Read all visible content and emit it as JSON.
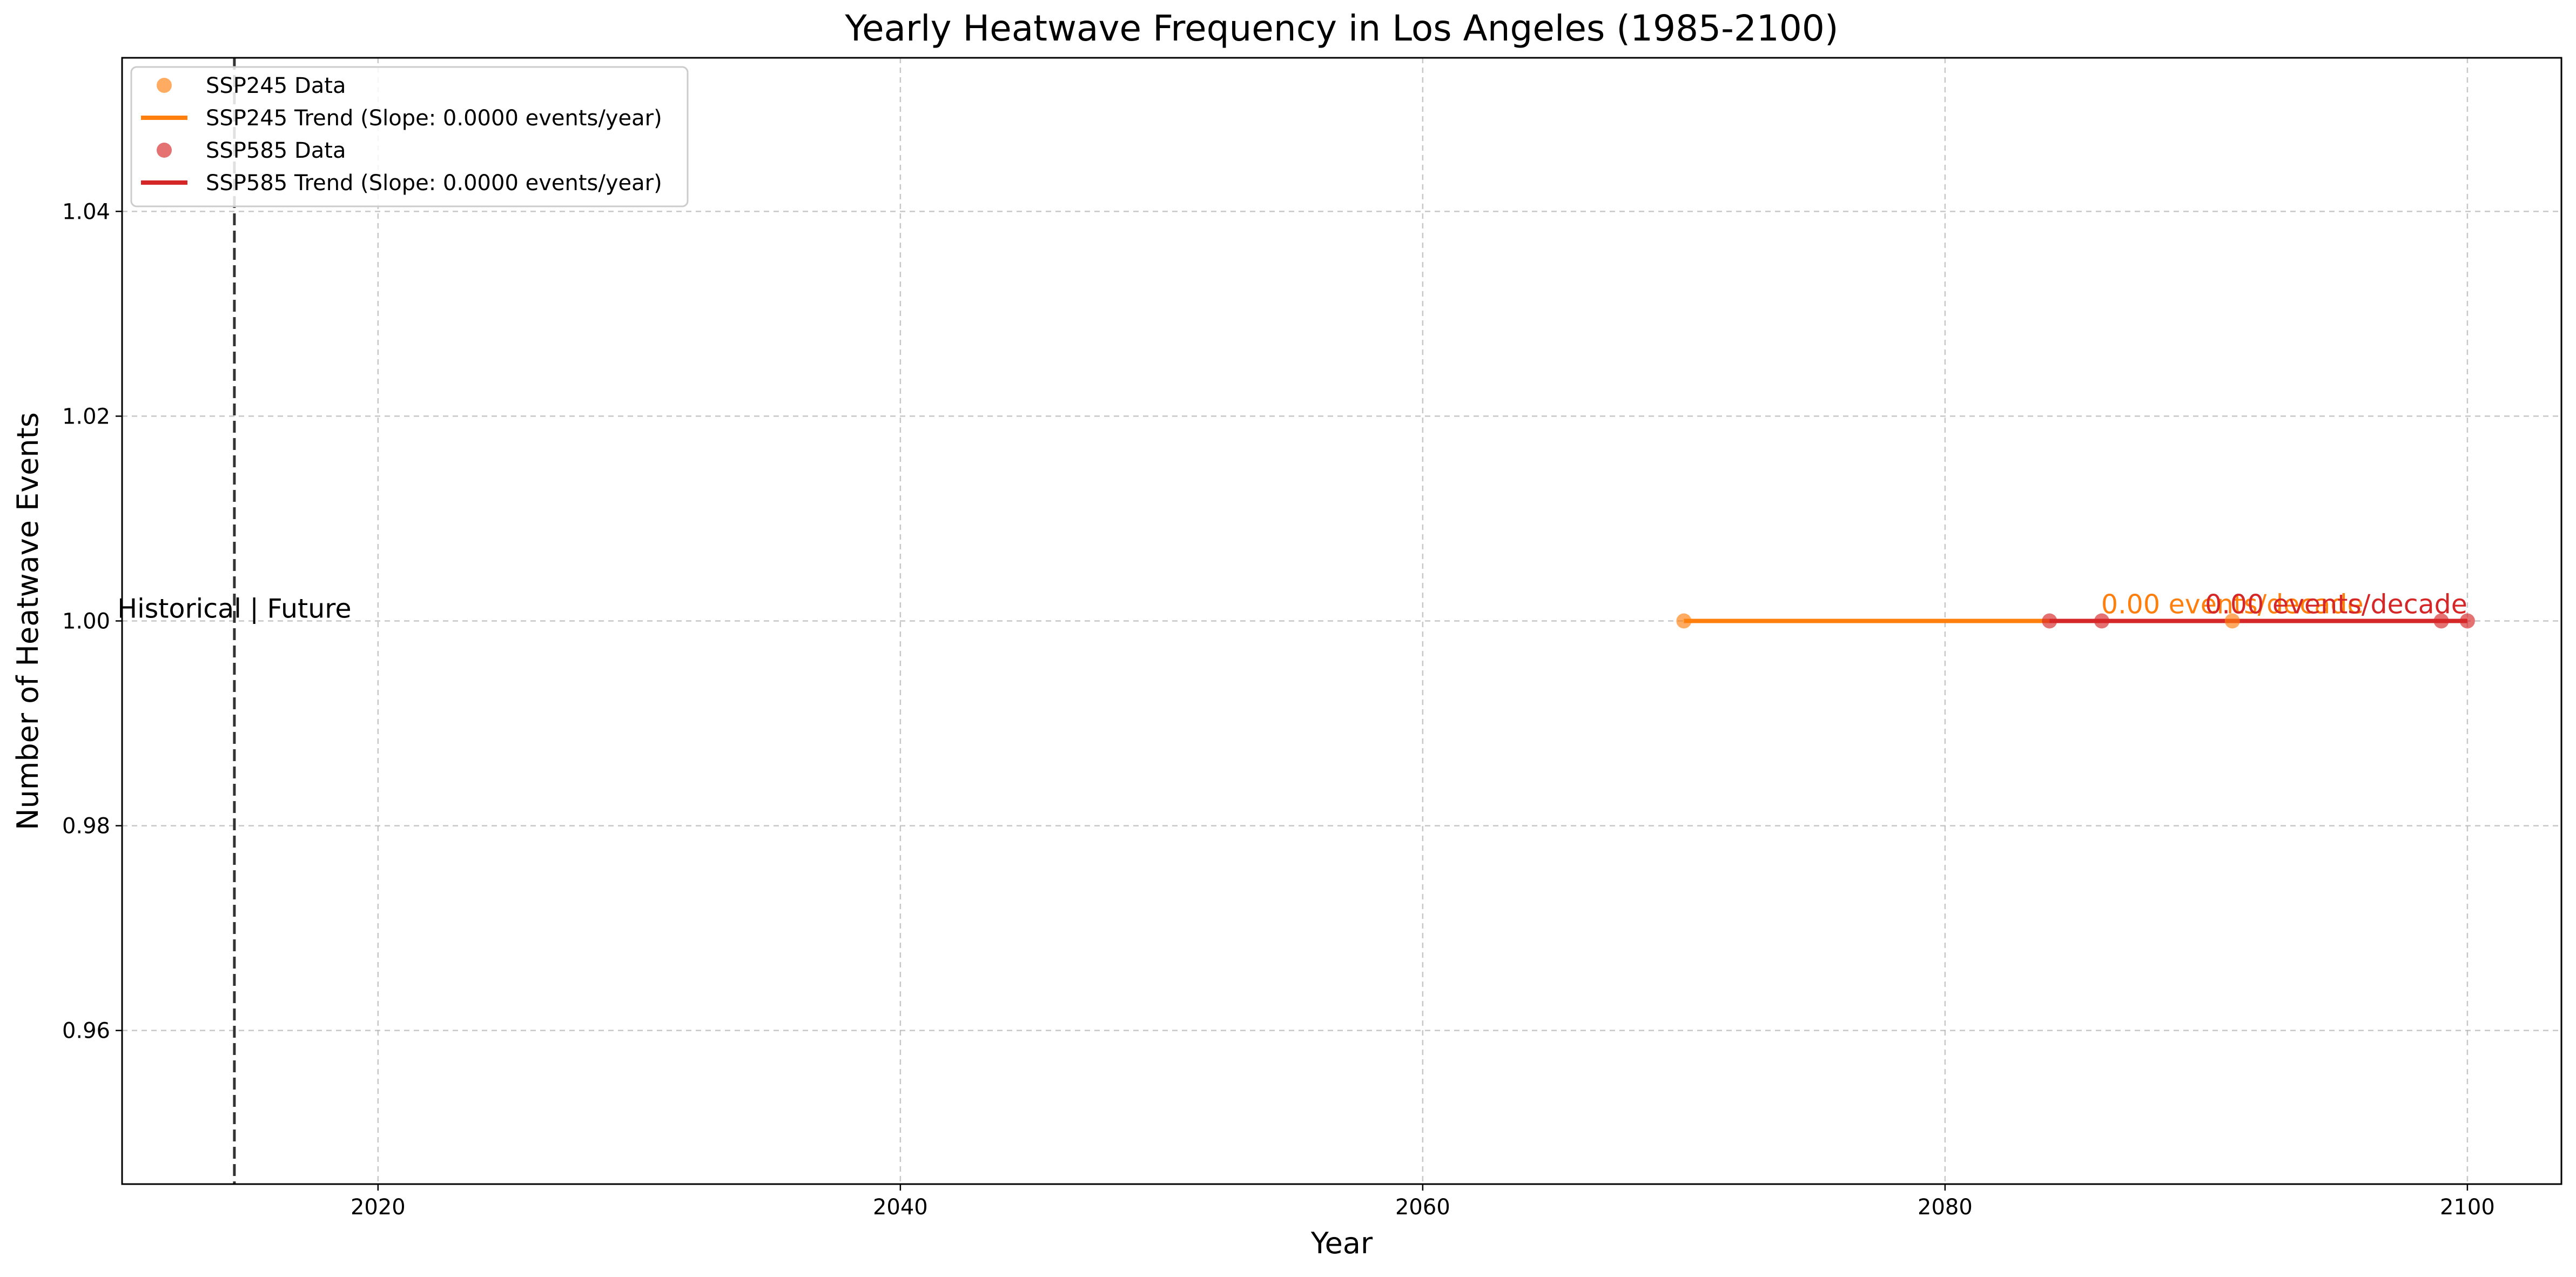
{
  "chart_data": {
    "type": "scatter",
    "title": "Yearly Heatwave Frequency in Los Angeles (1985-2100)",
    "xlabel": "Year",
    "ylabel": "Number of Heatwave Events",
    "xlim": [
      2010.2,
      2103.6
    ],
    "ylim": [
      0.945,
      1.055
    ],
    "xticks": [
      2020,
      2040,
      2060,
      2080,
      2100
    ],
    "xtick_labels": [
      "2020",
      "2040",
      "2060",
      "2080",
      "2100"
    ],
    "yticks": [
      0.96,
      0.98,
      1.0,
      1.02,
      1.04
    ],
    "ytick_labels": [
      "0.96",
      "0.98",
      "1.00",
      "1.02",
      "1.04"
    ],
    "grid": true,
    "legend_position": "top-left",
    "series": [
      {
        "name": "SSP245 Data",
        "kind": "scatter",
        "color": "#ff7f0e",
        "x": [
          2070,
          2091
        ],
        "y": [
          1,
          1
        ]
      },
      {
        "name": "SSP245 Trend (Slope: 0.0000 events/year)",
        "kind": "line",
        "color": "#ff7f0e",
        "x": [
          2070,
          2091
        ],
        "y": [
          1,
          1
        ]
      },
      {
        "name": "SSP585 Data",
        "kind": "scatter",
        "color": "#d62728",
        "x": [
          2084,
          2086,
          2099,
          2100
        ],
        "y": [
          1,
          1,
          1,
          1
        ]
      },
      {
        "name": "SSP585 Trend (Slope: 0.0000 events/year)",
        "kind": "line",
        "color": "#d62728",
        "x": [
          2084,
          2100
        ],
        "y": [
          1,
          1
        ]
      }
    ],
    "divider": {
      "x": 2014.5,
      "label": "Historical | Future",
      "color": "#333333"
    },
    "annotations": [
      {
        "text": "0.00 events/decade",
        "x": 2091,
        "y": 1.0,
        "color": "#ff7f0e",
        "anchor": "middle"
      },
      {
        "text": "0.00 events/decade",
        "x": 2100,
        "y": 1.0,
        "color": "#d62728",
        "anchor": "end"
      }
    ]
  }
}
